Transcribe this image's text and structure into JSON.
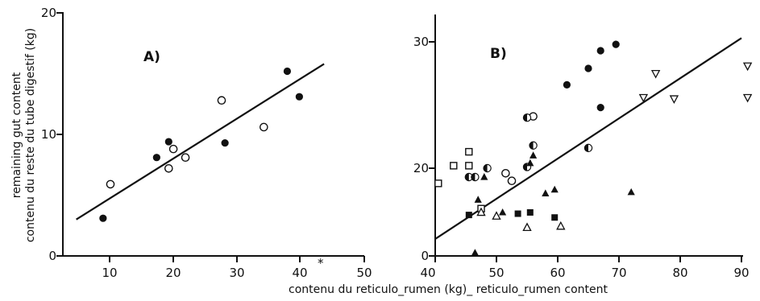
{
  "chart_data": [
    {
      "type": "scatter",
      "panel_label": "A)",
      "x_ticks": [
        "10",
        "20",
        "30",
        "40",
        "50"
      ],
      "y_ticks": [
        "0",
        "10",
        "20"
      ],
      "xlim": [
        5,
        50
      ],
      "ylim": [
        0,
        20
      ],
      "ylabel_lines": [
        "remaining gut content",
        "contenu du reste du tube digestif (kg)"
      ],
      "series": [
        {
          "marker": "filled-circle",
          "points": [
            [
              11,
              3.1
            ],
            [
              19,
              8.1
            ],
            [
              20.8,
              9.4
            ],
            [
              29.2,
              9.3
            ],
            [
              38.5,
              15.2
            ],
            [
              40.3,
              13.1
            ]
          ]
        },
        {
          "marker": "open-circle",
          "points": [
            [
              12.1,
              5.9
            ],
            [
              20.8,
              7.2
            ],
            [
              21.5,
              8.8
            ],
            [
              23.3,
              8.1
            ],
            [
              28.7,
              12.8
            ],
            [
              35,
              10.6
            ]
          ]
        }
      ],
      "fit_line": {
        "x1": 7,
        "y1": 3.0,
        "x2": 44,
        "y2": 15.8
      }
    },
    {
      "type": "scatter",
      "panel_label": "B)",
      "x_ticks": [
        "40",
        "50",
        "60",
        "70",
        "80",
        "90"
      ],
      "y_ticks": [
        "0",
        "20",
        "30"
      ],
      "xlim": [
        39,
        91
      ],
      "ylim": [
        11.3,
        31.1
      ],
      "series": [
        {
          "marker": "filled-circle",
          "points": [
            [
              61.5,
              26.6
            ],
            [
              65,
              27.9
            ],
            [
              67,
              29.3
            ],
            [
              69.5,
              29.8
            ],
            [
              67,
              24.8
            ]
          ]
        },
        {
          "marker": "open-circle",
          "points": [
            [
              56,
              24.1
            ],
            [
              51.5,
              19.6
            ],
            [
              52.5,
              19
            ]
          ]
        },
        {
          "marker": "half-circle",
          "points": [
            [
              55,
              24
            ],
            [
              56,
              21.8
            ],
            [
              55,
              20.1
            ],
            [
              48.5,
              20
            ],
            [
              65,
              21.6
            ],
            [
              45.5,
              19.3
            ],
            [
              46.5,
              19.3
            ]
          ]
        },
        {
          "marker": "open-square",
          "points": [
            [
              40.5,
              18.8
            ],
            [
              43,
              20.2
            ],
            [
              45.5,
              21.3
            ],
            [
              45.5,
              20.2
            ],
            [
              47.5,
              16.8
            ]
          ]
        },
        {
          "marker": "filled-square",
          "points": [
            [
              45.5,
              16.3
            ],
            [
              53.5,
              16.4
            ],
            [
              55.5,
              16.5
            ],
            [
              59.5,
              16.1
            ]
          ]
        },
        {
          "marker": "filled-triangle",
          "points": [
            [
              46.5,
              13.3
            ],
            [
              47,
              17.5
            ],
            [
              48,
              19.3
            ],
            [
              51,
              16.5
            ],
            [
              55.5,
              20.4
            ],
            [
              56,
              21
            ],
            [
              58,
              18
            ],
            [
              59.5,
              18.3
            ],
            [
              72,
              18.1
            ]
          ]
        },
        {
          "marker": "open-triangle",
          "points": [
            [
              47.5,
              16.5
            ],
            [
              50,
              16.2
            ],
            [
              55,
              15.3
            ],
            [
              60.5,
              15.4
            ]
          ]
        },
        {
          "marker": "open-triangle-down",
          "points": [
            [
              74,
              25.6
            ],
            [
              76,
              27.5
            ],
            [
              79,
              25.5
            ],
            [
              91,
              28.1
            ],
            [
              91,
              25.6
            ]
          ]
        }
      ],
      "fit_line": {
        "x1": 40,
        "y1": 14.4,
        "x2": 90,
        "y2": 30.3
      }
    }
  ],
  "xlabel": "contenu du reticulo_rumen (kg)_ reticulo_rumen content",
  "stray_mark": "*"
}
